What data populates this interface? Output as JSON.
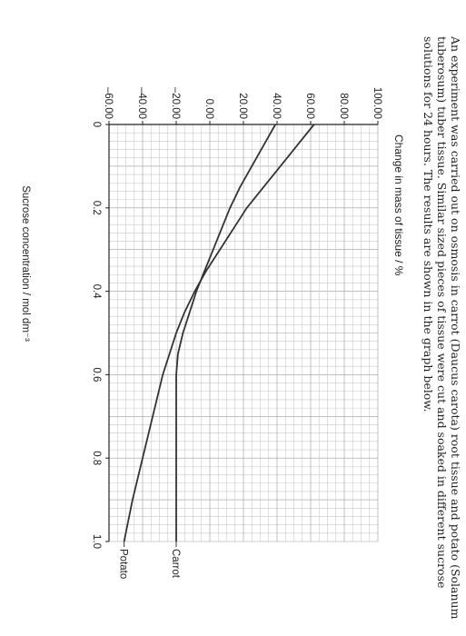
{
  "intro": {
    "line1": "An experiment was carried out on osmosis in carrot (Daucus carota) root tissue and potato (Solanum",
    "line2": "tuberosum) tuber tissue. Similar sized pieces of tissue were cut and soaked in different sucrose",
    "line3": "solutions for 24 hours. The results are shown in the graph below."
  },
  "chart_data": {
    "type": "line",
    "title": "",
    "ylabel": "Change in mass of tissue / %",
    "xlabel": "Sucrose concentration / mol dm⁻³",
    "xlim": [
      0,
      1.0
    ],
    "ylim": [
      -60,
      100
    ],
    "x_ticks": [
      "0",
      "0.2",
      "0.4",
      "0.6",
      "0.8",
      "1.0"
    ],
    "y_ticks": [
      "100.00",
      "80.00",
      "60.00",
      "40.00",
      "20.00",
      "0.00",
      "–20.00",
      "–40.00",
      "–60.00"
    ],
    "grid": true,
    "legend": "line-end labels",
    "series": [
      {
        "name": "Carrot",
        "color": "#333333",
        "x": [
          0.0,
          0.05,
          0.1,
          0.15,
          0.2,
          0.25,
          0.3,
          0.35,
          0.4,
          0.45,
          0.5,
          0.55,
          0.6,
          0.7,
          0.8,
          0.9,
          1.0
        ],
        "y": [
          39,
          32,
          25,
          18,
          12,
          7,
          2,
          -3,
          -8,
          -12,
          -16,
          -19,
          -20,
          -20,
          -20,
          -20,
          -20
        ]
      },
      {
        "name": "Potato",
        "color": "#333333",
        "x": [
          0.0,
          0.05,
          0.1,
          0.15,
          0.2,
          0.25,
          0.3,
          0.35,
          0.4,
          0.45,
          0.5,
          0.55,
          0.6,
          0.7,
          0.8,
          0.9,
          1.0
        ],
        "y": [
          62,
          52,
          42,
          32,
          22,
          14,
          6,
          -2,
          -9,
          -15,
          -20,
          -24,
          -28,
          -34,
          -40,
          -46,
          -51
        ]
      }
    ]
  }
}
